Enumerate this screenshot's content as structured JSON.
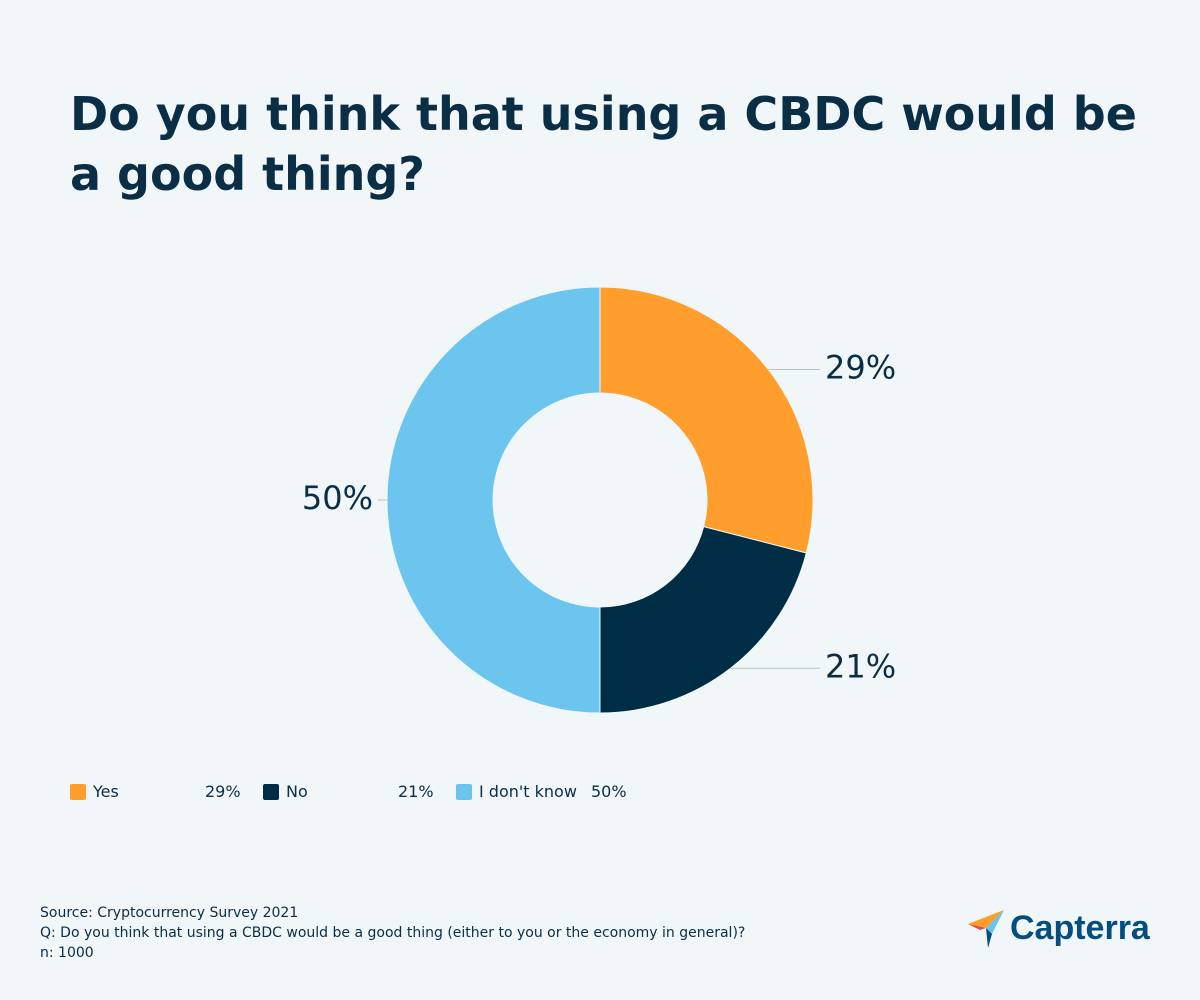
{
  "chart_data": {
    "type": "donut",
    "title": "Do you think that using a CBDC would be a good thing?",
    "categories": [
      "Yes",
      "No",
      "I don't know"
    ],
    "values": [
      29,
      21,
      50
    ],
    "value_labels": [
      "29%",
      "21%",
      "50%"
    ],
    "colors": [
      "#ff9e2c",
      "#002d46",
      "#6bc5ee"
    ],
    "footnotes": [
      "Source: Cryptocurrency Survey 2021",
      "Q: Do you think that using a CBDC would be a good thing (either to you or the economy in general)?",
      "n: 1000"
    ],
    "logo": "Capterra"
  }
}
